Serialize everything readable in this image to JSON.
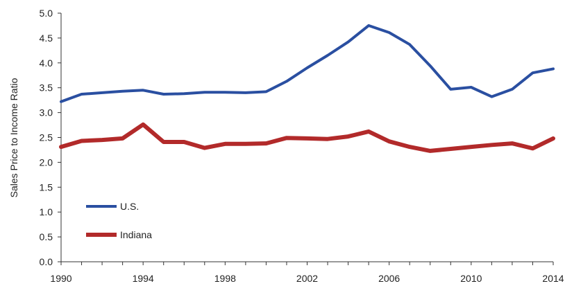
{
  "chart_data": {
    "type": "line",
    "title": "",
    "xlabel": "",
    "ylabel": "Sales Price to Income Ratio",
    "x": [
      1990,
      1991,
      1992,
      1993,
      1994,
      1995,
      1996,
      1997,
      1998,
      1999,
      2000,
      2001,
      2002,
      2003,
      2004,
      2005,
      2006,
      2007,
      2008,
      2009,
      2010,
      2011,
      2012,
      2013,
      2014
    ],
    "xlim": [
      1990,
      2014
    ],
    "xticks": [
      1990,
      1994,
      1998,
      2002,
      2006,
      2010,
      2014
    ],
    "xtick_labels": [
      "1990",
      "1994",
      "1998",
      "2002",
      "2006",
      "2010",
      "2014"
    ],
    "ylim": [
      0,
      5
    ],
    "yticks": [
      0,
      0.5,
      1,
      1.5,
      2,
      2.5,
      3,
      3.5,
      4,
      4.5,
      5
    ],
    "ytick_labels": [
      "0.0",
      "0.5",
      "1.0",
      "1.5",
      "2.0",
      "2.5",
      "3.0",
      "3.5",
      "4.0",
      "4.5",
      "5.0"
    ],
    "grid": false,
    "legend_position": "bottom-left",
    "series": [
      {
        "name": "U.S.",
        "color": "#2a4fa1",
        "values": [
          3.22,
          3.37,
          3.4,
          3.43,
          3.45,
          3.37,
          3.38,
          3.41,
          3.41,
          3.4,
          3.42,
          3.63,
          3.9,
          4.15,
          4.42,
          4.75,
          4.61,
          4.37,
          3.94,
          3.47,
          3.51,
          3.32,
          3.47,
          3.8,
          3.88
        ]
      },
      {
        "name": "Indiana",
        "color": "#b22a2a",
        "values": [
          2.31,
          2.43,
          2.45,
          2.48,
          2.76,
          2.41,
          2.41,
          2.29,
          2.37,
          2.37,
          2.38,
          2.49,
          2.48,
          2.47,
          2.52,
          2.62,
          2.42,
          2.31,
          2.23,
          2.27,
          2.31,
          2.35,
          2.38,
          2.28,
          2.48
        ]
      }
    ]
  }
}
